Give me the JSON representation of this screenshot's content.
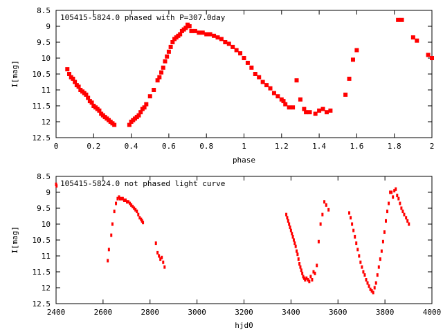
{
  "chart_data": [
    {
      "type": "scatter",
      "title": "105415-5824.0 phased with P=307.0day",
      "xlabel": "phase",
      "ylabel": "I[mag]",
      "xlim": [
        0,
        2
      ],
      "ylim": [
        8.5,
        12.5
      ],
      "y_inverted": true,
      "xticks": [
        0,
        0.2,
        0.4,
        0.6,
        0.8,
        1,
        1.2,
        1.4,
        1.6,
        1.8,
        2
      ],
      "xtick_labels": [
        "0",
        "0.2",
        "0.4",
        "0.6",
        "0.8",
        "1",
        "1.2",
        "1.4",
        "1.6",
        "1.8",
        "2"
      ],
      "yticks": [
        8.5,
        9,
        9.5,
        10,
        10.5,
        11,
        11.5,
        12,
        12.5
      ],
      "ytick_labels": [
        "8.5",
        "9",
        "9.5",
        "10",
        "10.5",
        "11",
        "11.5",
        "12",
        "12.5"
      ],
      "marker_color": "#ff0000",
      "series": [
        {
          "x": [
            0.06,
            0.07,
            0.08,
            0.09,
            0.1,
            0.11,
            0.12,
            0.13,
            0.14,
            0.15,
            0.16,
            0.17,
            0.18,
            0.19,
            0.2,
            0.21,
            0.22,
            0.23,
            0.24,
            0.25,
            0.26,
            0.27,
            0.28,
            0.29,
            0.3,
            0.31,
            0.39,
            0.4,
            0.41,
            0.42,
            0.43,
            0.44,
            0.45,
            0.46,
            0.47,
            0.48,
            0.5,
            0.52,
            0.54,
            0.55,
            0.56,
            0.57,
            0.58,
            0.59,
            0.6,
            0.61,
            0.62,
            0.63,
            0.64,
            0.65,
            0.66,
            0.67,
            0.68,
            0.69,
            0.7,
            0.71,
            0.72,
            0.74,
            0.76,
            0.78,
            0.8,
            0.82,
            0.84,
            0.86,
            0.88,
            0.9,
            0.92,
            0.94,
            0.96,
            0.98,
            1.0,
            1.02,
            1.04,
            1.06,
            1.08,
            1.1,
            1.12,
            1.14,
            1.16,
            1.18,
            1.2,
            1.21,
            1.22,
            1.24,
            1.26,
            1.28,
            1.3,
            1.32,
            1.33,
            1.35,
            1.38,
            1.4,
            1.42,
            1.44,
            1.46,
            1.54,
            1.56,
            1.58,
            1.6,
            1.82,
            1.84,
            1.9,
            1.92,
            1.98,
            2.0
          ],
          "y": [
            10.35,
            10.5,
            10.6,
            10.65,
            10.75,
            10.85,
            10.9,
            11.0,
            11.05,
            11.1,
            11.15,
            11.25,
            11.35,
            11.4,
            11.5,
            11.55,
            11.6,
            11.65,
            11.75,
            11.8,
            11.85,
            11.9,
            11.95,
            12.0,
            12.05,
            12.1,
            12.1,
            12.0,
            11.95,
            11.9,
            11.85,
            11.8,
            11.7,
            11.6,
            11.55,
            11.45,
            11.2,
            11.0,
            10.7,
            10.6,
            10.45,
            10.3,
            10.1,
            9.95,
            9.8,
            9.65,
            9.5,
            9.4,
            9.35,
            9.3,
            9.25,
            9.15,
            9.1,
            9.05,
            8.95,
            9.0,
            9.15,
            9.15,
            9.2,
            9.2,
            9.25,
            9.25,
            9.3,
            9.35,
            9.4,
            9.5,
            9.55,
            9.65,
            9.75,
            9.85,
            10.0,
            10.15,
            10.3,
            10.5,
            10.6,
            10.75,
            10.85,
            10.95,
            11.1,
            11.2,
            11.3,
            11.35,
            11.45,
            11.55,
            11.55,
            10.7,
            11.3,
            11.6,
            11.7,
            11.7,
            11.75,
            11.65,
            11.6,
            11.7,
            11.65,
            11.15,
            10.65,
            10.05,
            9.75,
            8.8,
            8.8,
            9.35,
            9.45,
            9.9,
            10.0
          ]
        }
      ]
    },
    {
      "type": "scatter",
      "title": "105415-5824.0 not phased light curve",
      "xlabel": "hjd0",
      "ylabel": "I[mag]",
      "xlim": [
        2400,
        4000
      ],
      "ylim": [
        8.5,
        12.5
      ],
      "y_inverted": true,
      "xticks": [
        2400,
        2600,
        2800,
        3000,
        3200,
        3400,
        3600,
        3800,
        4000
      ],
      "xtick_labels": [
        "2400",
        "2600",
        "2800",
        "3000",
        "3200",
        "3400",
        "3600",
        "3800",
        "4000"
      ],
      "yticks": [
        8.5,
        9,
        9.5,
        10,
        10.5,
        11,
        11.5,
        12,
        12.5
      ],
      "ytick_labels": [
        "8.5",
        "9",
        "9.5",
        "10",
        "10.5",
        "11",
        "11.5",
        "12",
        "12.5"
      ],
      "marker_color": "#ff0000",
      "series": [
        {
          "x": [
            2400,
            2402,
            2620,
            2625,
            2635,
            2640,
            2648,
            2655,
            2662,
            2668,
            2672,
            2678,
            2684,
            2690,
            2696,
            2702,
            2708,
            2714,
            2720,
            2726,
            2732,
            2738,
            2744,
            2750,
            2756,
            2762,
            2766,
            2770,
            2825,
            2832,
            2838,
            2844,
            2850,
            2856,
            2862,
            3380,
            3384,
            3388,
            3392,
            3396,
            3400,
            3404,
            3408,
            3412,
            3416,
            3420,
            3424,
            3428,
            3432,
            3436,
            3440,
            3444,
            3448,
            3452,
            3456,
            3460,
            3466,
            3472,
            3478,
            3484,
            3490,
            3496,
            3502,
            3510,
            3518,
            3526,
            3534,
            3542,
            3550,
            3560,
            3648,
            3654,
            3660,
            3666,
            3672,
            3678,
            3684,
            3690,
            3696,
            3702,
            3708,
            3714,
            3720,
            3726,
            3732,
            3738,
            3744,
            3750,
            3756,
            3762,
            3768,
            3774,
            3780,
            3786,
            3792,
            3798,
            3804,
            3810,
            3816,
            3822,
            3828,
            3834,
            3840,
            3846,
            3852,
            3858,
            3864,
            3870,
            3876,
            3882,
            3890,
            3896,
            3902
          ],
          "y": [
            8.75,
            8.8,
            11.15,
            10.8,
            10.35,
            10.0,
            9.6,
            9.35,
            9.2,
            9.15,
            9.2,
            9.2,
            9.2,
            9.25,
            9.25,
            9.3,
            9.3,
            9.35,
            9.4,
            9.45,
            9.5,
            9.55,
            9.6,
            9.7,
            9.8,
            9.85,
            9.9,
            9.95,
            10.6,
            10.9,
            11.0,
            11.1,
            11.05,
            11.2,
            11.35,
            9.7,
            9.8,
            9.9,
            10.0,
            10.1,
            10.2,
            10.3,
            10.4,
            10.5,
            10.6,
            10.7,
            10.85,
            10.95,
            11.1,
            11.25,
            11.35,
            11.45,
            11.55,
            11.65,
            11.7,
            11.75,
            11.7,
            11.75,
            11.8,
            11.65,
            11.75,
            11.5,
            11.55,
            11.3,
            10.55,
            10.0,
            9.7,
            9.3,
            9.4,
            9.55,
            9.65,
            9.8,
            10.0,
            10.2,
            10.4,
            10.6,
            10.8,
            11.0,
            11.2,
            11.35,
            11.5,
            11.6,
            11.75,
            11.85,
            11.95,
            12.05,
            12.1,
            12.15,
            12.0,
            11.85,
            11.6,
            11.35,
            11.1,
            10.85,
            10.55,
            10.25,
            9.9,
            9.6,
            9.35,
            9.0,
            9.0,
            9.15,
            8.95,
            8.9,
            9.1,
            9.2,
            9.35,
            9.5,
            9.6,
            9.7,
            9.8,
            9.9,
            10.0
          ],
          "marker_size": "small"
        }
      ]
    }
  ]
}
